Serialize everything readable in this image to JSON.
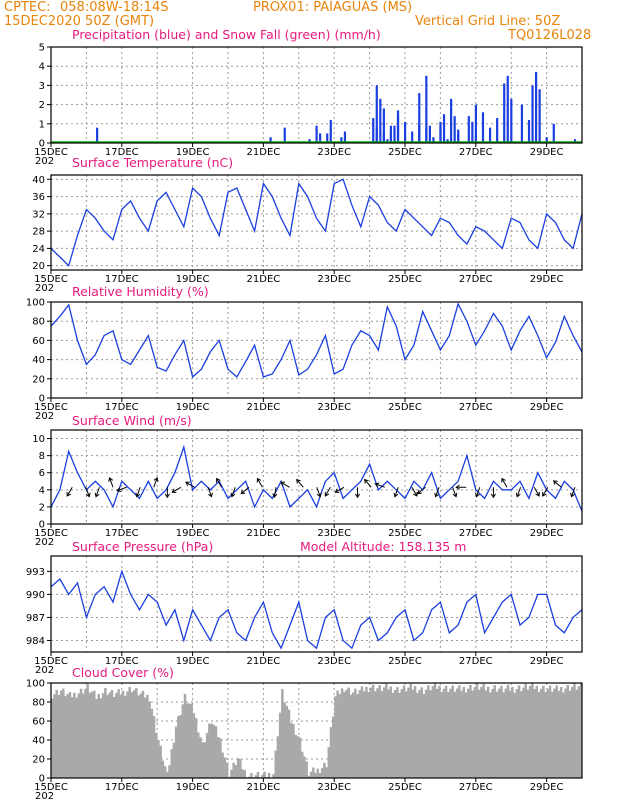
{
  "header": {
    "source": "CPTEC:",
    "coords": "058:08W-18:14S",
    "station": "PROX01: PAIAGUAS (MS)",
    "run": "15DEC2020 50Z (GMT)",
    "grid_note": "Vertical Grid Line: 50Z",
    "model_code": "TQ0126L028"
  },
  "x_axis": {
    "labels": [
      "15DEC",
      "17DEC",
      "19DEC",
      "21DEC",
      "23DEC",
      "25DEC",
      "27DEC",
      "29DEC"
    ],
    "year_stub": "202"
  },
  "altitude_label": "Model Altitude: 158.135 m",
  "colors": {
    "header": "#e8840c",
    "titles": "#e8197e",
    "line": "#1a3fe0",
    "precip": "#1a3fe0",
    "snow": "#00aa00",
    "cloud": "#a9a9a9",
    "arrow": "#000000"
  },
  "chart_data": [
    {
      "type": "bar",
      "title": "Precipitation (blue) and Snow Fall (green) (mm/h)",
      "ylim": [
        0,
        5
      ],
      "yticks": [
        0,
        1,
        2,
        3,
        4,
        5
      ],
      "xlim_days": [
        0,
        15
      ],
      "series": [
        {
          "name": "Precipitation",
          "color": "#1a3fe0",
          "points": [
            [
              1.3,
              0.8
            ],
            [
              6.2,
              0.3
            ],
            [
              6.6,
              0.8
            ],
            [
              7.3,
              0.2
            ],
            [
              7.5,
              0.9
            ],
            [
              7.6,
              0.5
            ],
            [
              7.8,
              0.5
            ],
            [
              7.9,
              1.2
            ],
            [
              8.2,
              0.3
            ],
            [
              8.3,
              0.6
            ],
            [
              9.1,
              1.3
            ],
            [
              9.2,
              0.8
            ],
            [
              9.3,
              2.3
            ],
            [
              9.4,
              0.5
            ],
            [
              9.5,
              0.2
            ],
            [
              9.6,
              0.6
            ],
            [
              9.7,
              0.9
            ],
            [
              9.8,
              1.7
            ],
            [
              10.0,
              1.1
            ],
            [
              10.2,
              0.6
            ],
            [
              10.4,
              1.0
            ],
            [
              10.6,
              0.8
            ],
            [
              10.8,
              0.3
            ],
            [
              11.0,
              1.1
            ],
            [
              11.2,
              0.2
            ],
            [
              11.5,
              0.5
            ],
            [
              12.0,
              0.4
            ],
            [
              9.2,
              3.0
            ],
            [
              9.4,
              1.8
            ],
            [
              9.6,
              0.9
            ],
            [
              9.8,
              1.5
            ],
            [
              10.4,
              2.6
            ],
            [
              10.6,
              3.5
            ],
            [
              10.7,
              0.9
            ],
            [
              11.0,
              0.9
            ],
            [
              11.1,
              1.5
            ],
            [
              11.3,
              2.3
            ],
            [
              11.4,
              1.4
            ],
            [
              11.5,
              0.7
            ],
            [
              11.8,
              1.4
            ],
            [
              11.9,
              1.1
            ],
            [
              12.0,
              2.0
            ],
            [
              12.2,
              1.6
            ],
            [
              12.4,
              0.8
            ],
            [
              12.6,
              1.3
            ],
            [
              12.8,
              3.1
            ],
            [
              12.9,
              3.5
            ],
            [
              13.0,
              2.3
            ],
            [
              13.3,
              2.0
            ],
            [
              13.5,
              1.2
            ],
            [
              13.6,
              3.0
            ],
            [
              13.7,
              3.7
            ],
            [
              13.8,
              2.8
            ],
            [
              14.0,
              0.3
            ],
            [
              14.2,
              1.0
            ],
            [
              14.8,
              0.2
            ]
          ]
        },
        {
          "name": "Snow Fall",
          "color": "#00aa00",
          "points": []
        }
      ]
    },
    {
      "type": "line",
      "title": "Surface Temperature (nC)",
      "ylim": [
        19,
        41
      ],
      "yticks": [
        20,
        24,
        28,
        32,
        36,
        40
      ],
      "xlim_days": [
        0,
        15
      ],
      "series": [
        {
          "name": "Temperature",
          "x": [
            0,
            0.25,
            0.5,
            0.75,
            1,
            1.25,
            1.5,
            1.75,
            2,
            2.25,
            2.5,
            2.75,
            3,
            3.25,
            3.5,
            3.75,
            4,
            4.25,
            4.5,
            4.75,
            5,
            5.25,
            5.5,
            5.75,
            6,
            6.25,
            6.5,
            6.75,
            7,
            7.25,
            7.5,
            7.75,
            8,
            8.25,
            8.5,
            8.75,
            9,
            9.25,
            9.5,
            9.75,
            10,
            10.25,
            10.5,
            10.75,
            11,
            11.25,
            11.5,
            11.75,
            12,
            12.25,
            12.5,
            12.75,
            13,
            13.25,
            13.5,
            13.75,
            14,
            14.25,
            14.5,
            14.75,
            15
          ],
          "y": [
            24,
            22,
            20,
            27,
            33,
            31,
            28,
            26,
            33,
            35,
            31,
            28,
            35,
            37,
            33,
            29,
            38,
            36,
            31,
            27,
            37,
            38,
            33,
            28,
            39,
            36,
            31,
            27,
            39,
            36,
            31,
            28,
            39,
            40,
            34,
            29,
            36,
            34,
            30,
            28,
            33,
            31,
            29,
            27,
            31,
            30,
            27,
            25,
            29,
            28,
            26,
            24,
            31,
            30,
            26,
            24,
            32,
            30,
            26,
            24,
            32
          ]
        }
      ]
    },
    {
      "type": "line",
      "title": "Relative Humidity (%)",
      "ylim": [
        0,
        100
      ],
      "yticks": [
        0,
        20,
        40,
        60,
        80,
        100
      ],
      "xlim_days": [
        0,
        15
      ],
      "series": [
        {
          "name": "Relative Humidity",
          "x": [
            0,
            0.25,
            0.5,
            0.75,
            1,
            1.25,
            1.5,
            1.75,
            2,
            2.25,
            2.5,
            2.75,
            3,
            3.25,
            3.5,
            3.75,
            4,
            4.25,
            4.5,
            4.75,
            5,
            5.25,
            5.5,
            5.75,
            6,
            6.25,
            6.5,
            6.75,
            7,
            7.25,
            7.5,
            7.75,
            8,
            8.25,
            8.5,
            8.75,
            9,
            9.25,
            9.5,
            9.75,
            10,
            10.25,
            10.5,
            10.75,
            11,
            11.25,
            11.5,
            11.75,
            12,
            12.25,
            12.5,
            12.75,
            13,
            13.25,
            13.5,
            13.75,
            14,
            14.25,
            14.5,
            14.75,
            15
          ],
          "y": [
            75,
            85,
            97,
            60,
            35,
            45,
            65,
            70,
            40,
            35,
            50,
            65,
            32,
            28,
            45,
            60,
            22,
            30,
            48,
            60,
            30,
            22,
            38,
            55,
            22,
            25,
            40,
            60,
            24,
            30,
            45,
            65,
            25,
            30,
            55,
            70,
            65,
            50,
            95,
            75,
            40,
            55,
            90,
            70,
            50,
            65,
            98,
            80,
            55,
            70,
            88,
            75,
            50,
            70,
            85,
            65,
            42,
            58,
            85,
            65,
            48
          ]
        }
      ]
    },
    {
      "type": "line",
      "title": "Surface Wind (m/s)",
      "ylim": [
        0,
        11
      ],
      "yticks": [
        0,
        2,
        4,
        6,
        8,
        10
      ],
      "xlim_days": [
        0,
        15
      ],
      "series": [
        {
          "name": "Wind Speed",
          "x": [
            0,
            0.25,
            0.5,
            0.75,
            1,
            1.25,
            1.5,
            1.75,
            2,
            2.25,
            2.5,
            2.75,
            3,
            3.25,
            3.5,
            3.75,
            4,
            4.25,
            4.5,
            4.75,
            5,
            5.25,
            5.5,
            5.75,
            6,
            6.25,
            6.5,
            6.75,
            7,
            7.25,
            7.5,
            7.75,
            8,
            8.25,
            8.5,
            8.75,
            9,
            9.25,
            9.5,
            9.75,
            10,
            10.25,
            10.5,
            10.75,
            11,
            11.25,
            11.5,
            11.75,
            12,
            12.25,
            12.5,
            12.75,
            13,
            13.25,
            13.5,
            13.75,
            14,
            14.25,
            14.5,
            14.75,
            15
          ],
          "y": [
            2,
            4,
            8.5,
            6,
            4,
            5,
            4,
            2,
            5,
            4,
            3,
            5,
            3,
            4,
            6,
            9,
            4,
            5,
            4,
            5,
            3,
            4,
            5,
            2,
            4,
            3,
            5,
            2,
            3,
            4,
            2,
            5,
            6,
            3,
            4,
            5,
            7,
            4,
            5,
            4,
            3,
            5,
            4,
            6,
            3,
            4,
            5,
            8,
            4,
            3,
            5,
            4,
            4,
            5,
            3,
            6,
            4,
            3,
            5,
            4,
            1.5
          ]
        },
        {
          "name": "Wind Direction",
          "color": "#000000",
          "arrows_deg": [
            210,
            160,
            200,
            340,
            250,
            200,
            20,
            180,
            240,
            300,
            160,
            330,
            200,
            230,
            330,
            190,
            300,
            320,
            160,
            210,
            240,
            180,
            320,
            290,
            200,
            150,
            230,
            200,
            160,
            270,
            200,
            180,
            330,
            200,
            150,
            210,
            310,
            200
          ]
        }
      ]
    },
    {
      "type": "line",
      "title": "Surface Pressure (hPa)",
      "ylim": [
        982.5,
        995
      ],
      "yticks": [
        984,
        987,
        990,
        993
      ],
      "xlim_days": [
        0,
        15
      ],
      "series": [
        {
          "name": "Pressure",
          "x": [
            0,
            0.25,
            0.5,
            0.75,
            1,
            1.25,
            1.5,
            1.75,
            2,
            2.25,
            2.5,
            2.75,
            3,
            3.25,
            3.5,
            3.75,
            4,
            4.25,
            4.5,
            4.75,
            5,
            5.25,
            5.5,
            5.75,
            6,
            6.25,
            6.5,
            6.75,
            7,
            7.25,
            7.5,
            7.75,
            8,
            8.25,
            8.5,
            8.75,
            9,
            9.25,
            9.5,
            9.75,
            10,
            10.25,
            10.5,
            10.75,
            11,
            11.25,
            11.5,
            11.75,
            12,
            12.25,
            12.5,
            12.75,
            13,
            13.25,
            13.5,
            13.75,
            14,
            14.25,
            14.5,
            14.75,
            15
          ],
          "y": [
            991,
            992,
            990,
            991.5,
            987,
            990,
            991,
            989,
            993,
            990,
            988,
            990,
            989,
            986,
            988,
            984,
            988,
            986,
            984,
            987,
            988,
            985,
            984,
            987,
            989,
            985,
            983,
            986,
            989,
            984,
            983,
            987,
            988,
            984,
            983,
            986,
            987,
            984,
            985,
            987,
            988,
            984,
            985,
            988,
            989,
            985,
            986,
            989,
            990,
            985,
            987,
            989,
            990,
            986,
            987,
            990,
            990,
            986,
            985,
            987,
            988
          ]
        }
      ]
    },
    {
      "type": "area",
      "title": "Cloud Cover (%)",
      "ylim": [
        0,
        100
      ],
      "yticks": [
        0,
        20,
        40,
        60,
        80,
        100
      ],
      "xlim_days": [
        0,
        15
      ],
      "series": [
        {
          "name": "Cloud Cover",
          "x": [
            0,
            0.25,
            0.5,
            0.75,
            1,
            1.25,
            1.5,
            1.75,
            2,
            2.25,
            2.5,
            2.75,
            3,
            3.25,
            3.5,
            3.75,
            4,
            4.25,
            4.5,
            4.75,
            5,
            5.25,
            5.5,
            5.75,
            6,
            6.25,
            6.5,
            6.75,
            7,
            7.25,
            7.5,
            7.75,
            8,
            8.25,
            8.5,
            8.75,
            9,
            9.25,
            9.5,
            9.75,
            10,
            10.25,
            10.5,
            10.75,
            11,
            11.25,
            11.5,
            11.75,
            12,
            12.25,
            12.5,
            12.75,
            13,
            13.25,
            13.5,
            13.75,
            14,
            14.25,
            14.5,
            14.75,
            15
          ],
          "y": [
            88,
            92,
            86,
            90,
            95,
            85,
            92,
            88,
            90,
            94,
            88,
            85,
            40,
            2,
            55,
            85,
            70,
            35,
            60,
            40,
            5,
            20,
            2,
            3,
            2,
            5,
            90,
            60,
            40,
            5,
            8,
            15,
            85,
            95,
            90,
            92,
            96,
            94,
            95,
            93,
            94,
            95,
            92,
            96,
            95,
            94,
            93,
            95,
            96,
            94,
            95,
            93,
            94,
            95,
            96,
            95,
            94,
            93,
            95,
            96,
            95
          ]
        }
      ]
    }
  ]
}
